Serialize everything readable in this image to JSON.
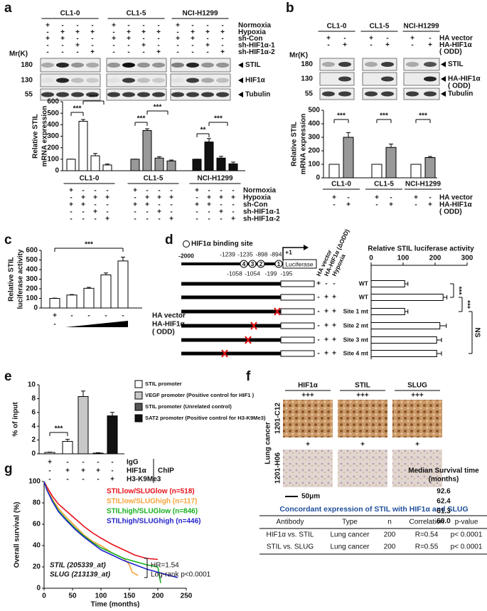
{
  "panel_labels": [
    "a",
    "b",
    "c",
    "d",
    "e",
    "f",
    "g"
  ],
  "a": {
    "cell_lines": [
      "CL1-0",
      "CL1-5",
      "NCI-H1299"
    ],
    "conditions": [
      {
        "label": [
          "Normoxia"
        ],
        "signs": [
          "+",
          "-",
          "-",
          "-",
          "+",
          "-",
          "-",
          "-",
          "+",
          "-",
          "-",
          "-"
        ]
      },
      {
        "label": [
          "Hypoxia"
        ],
        "signs": [
          "-",
          "+",
          "+",
          "+",
          "-",
          "+",
          "+",
          "+",
          "-",
          "+",
          "+",
          "+"
        ]
      },
      {
        "label": [
          "sh-Con"
        ],
        "signs": [
          "+",
          "+",
          "-",
          "-",
          "+",
          "+",
          "-",
          "-",
          "+",
          "+",
          "-",
          "-"
        ]
      },
      {
        "label": [
          "sh-HIF1α-1"
        ],
        "signs": [
          "-",
          "-",
          "+",
          "-",
          "-",
          "-",
          "+",
          "-",
          "-",
          "-",
          "+",
          "-"
        ]
      },
      {
        "label": [
          "sh-HIF1α-2"
        ],
        "signs": [
          "-",
          "-",
          "-",
          "+",
          "-",
          "-",
          "-",
          "+",
          "-",
          "-",
          "-",
          "+"
        ]
      }
    ],
    "mr_label": "Mr(K)",
    "blots": [
      {
        "mw": "180",
        "name": [
          "STIL"
        ]
      },
      {
        "mw": "130",
        "name": [
          "HIF1α"
        ]
      },
      {
        "mw": "55",
        "name": [
          "Tubulin"
        ]
      }
    ],
    "chart": {
      "type": "bar",
      "ylabel": [
        "Relative STIL",
        "mRNA expression"
      ],
      "ylim": [
        0,
        600
      ],
      "yticks": [
        0,
        100,
        200,
        300,
        400,
        500,
        600
      ],
      "values": [
        100,
        430,
        130,
        50,
        100,
        350,
        110,
        85,
        100,
        250,
        110,
        60
      ],
      "errors": [
        0,
        15,
        20,
        8,
        0,
        15,
        12,
        8,
        0,
        30,
        15,
        15
      ],
      "colors": [
        "#ffffff",
        "#ffffff",
        "#ffffff",
        "#ffffff",
        "#999999",
        "#999999",
        "#999999",
        "#999999",
        "#111111",
        "#111111",
        "#111111",
        "#111111"
      ],
      "significance": [
        "***",
        "***",
        "***",
        "***",
        "**",
        "***"
      ]
    }
  },
  "b": {
    "cell_lines": [
      "CL1-0",
      "CL1-5",
      "NCI-H1299"
    ],
    "conditions": [
      {
        "label": [
          "HA vector"
        ],
        "signs": [
          "+",
          "-",
          "+",
          "-",
          "+",
          "-"
        ]
      },
      {
        "label": [
          "HA-HIF1α",
          "(  ODD)"
        ],
        "signs": [
          "-",
          "+",
          "-",
          "+",
          "-",
          "+"
        ]
      }
    ],
    "mr_label": "Mr(K)",
    "blots": [
      {
        "mw": "180",
        "name": [
          "STIL"
        ]
      },
      {
        "mw": "130",
        "name": [
          "HA-HIF1α",
          "(  ODD)"
        ]
      },
      {
        "mw": "55",
        "name": [
          "Tubulin"
        ]
      }
    ],
    "chart": {
      "type": "bar",
      "ylabel": [
        "Relative STIL",
        "mRNA expression"
      ],
      "ylim": [
        0,
        500
      ],
      "yticks": [
        0,
        100,
        200,
        300,
        400,
        500
      ],
      "values": [
        100,
        300,
        100,
        225,
        100,
        150
      ],
      "errors": [
        0,
        35,
        0,
        25,
        0,
        8
      ],
      "colors": [
        "#ffffff",
        "#999999",
        "#ffffff",
        "#999999",
        "#ffffff",
        "#999999"
      ],
      "significance": [
        "***",
        "***",
        "***"
      ]
    }
  },
  "c": {
    "chart": {
      "type": "bar",
      "ylabel": [
        "Relative STIL",
        "luciferase activity"
      ],
      "ylim": [
        0,
        600
      ],
      "yticks": [
        0,
        100,
        200,
        300,
        400,
        500,
        600
      ],
      "values": [
        100,
        135,
        205,
        345,
        490
      ],
      "errors": [
        3,
        5,
        10,
        20,
        40
      ],
      "colors": [
        "#ffffff",
        "#ffffff",
        "#ffffff",
        "#ffffff",
        "#ffffff"
      ],
      "significance": [
        "***"
      ]
    },
    "conditions": [
      {
        "label": [
          "HA vector"
        ],
        "signs": [
          "+",
          "-",
          "-",
          "-",
          "-"
        ]
      }
    ],
    "wedge_sign": "-",
    "wedge_label": [
      "HA-HIF1α",
      "(  ODD)"
    ]
  },
  "d": {
    "legend": "HIF1α binding site",
    "start": "-2000",
    "sites_top": [
      "-1239",
      "-1235",
      "-898",
      "-894"
    ],
    "tss": "+1",
    "reporter": "Luciferase",
    "sites_bottom": [
      "-1058",
      "-1054",
      "-199",
      "-195"
    ],
    "site_numbers": [
      "4",
      "3",
      "2",
      "1"
    ],
    "columns": [
      "HA vector",
      "HA-HIF1α (ΔODD)",
      "Hypoxia"
    ],
    "constructs": [
      {
        "name": "WT",
        "signs": [
          "+",
          "-",
          "-"
        ]
      },
      {
        "name": "WT",
        "signs": [
          "-",
          "+",
          "+"
        ]
      },
      {
        "name": "Site 1 mt",
        "signs": [
          "-",
          "+",
          "+"
        ]
      },
      {
        "name": "Site 2 mt",
        "signs": [
          "-",
          "+",
          "+"
        ]
      },
      {
        "name": "Site 3 mt",
        "signs": [
          "-",
          "+",
          "+"
        ]
      },
      {
        "name": "Site 4 mt",
        "signs": [
          "-",
          "+",
          "+"
        ]
      }
    ],
    "chart": {
      "type": "bar",
      "orientation": "horizontal",
      "title": "Relative STIL luciferase activity",
      "xlim": [
        0,
        300
      ],
      "xticks": [
        0,
        100,
        200,
        300
      ],
      "values": [
        105,
        225,
        105,
        215,
        205,
        205
      ],
      "errors": [
        10,
        12,
        10,
        20,
        15,
        15
      ],
      "color": "#ffffff",
      "significance": [
        "***",
        "***",
        "NS"
      ]
    }
  },
  "e": {
    "chart": {
      "type": "bar",
      "ylabel": [
        "% of input"
      ],
      "ylim": [
        0,
        10
      ],
      "yticks": [
        0,
        2,
        4,
        6,
        8,
        10
      ],
      "values": [
        0.2,
        1.8,
        8.3,
        0.1,
        5.5
      ],
      "errors": [
        0.05,
        0.3,
        0.8,
        0.05,
        0.5
      ],
      "colors": [
        "#ffffff",
        "#ffffff",
        "#c8c8c8",
        "#555555",
        "#111111"
      ],
      "significance": [
        "***"
      ]
    },
    "legend": [
      {
        "label": "STIL promoter",
        "color": "#ffffff"
      },
      {
        "label": "VEGF promoter (Positive control for HIF1  )",
        "color": "#c8c8c8"
      },
      {
        "label": "STIL promoter (Unrelated control)",
        "color": "#555555"
      },
      {
        "label": "SAT2 promoter (Positive control for H3-K9Me3)",
        "color": "#111111"
      }
    ],
    "conditions": [
      {
        "label": [
          "IgG"
        ],
        "signs": [
          "+",
          "-",
          "-",
          "-",
          "-"
        ]
      },
      {
        "label": [
          "HIF1α"
        ],
        "signs": [
          "-",
          "+",
          "+",
          "+",
          "-"
        ]
      },
      {
        "label": [
          "H3-K9Me3"
        ],
        "signs": [
          "-",
          "-",
          "-",
          "-",
          "+"
        ]
      }
    ],
    "group_label": "ChIP"
  },
  "f": {
    "stains": [
      "HIF1α",
      "STIL",
      "SLUG"
    ],
    "scores": [
      [
        "+++",
        "+++",
        "+++"
      ],
      [
        "+",
        "+",
        "+"
      ]
    ],
    "samples": [
      "1201-C12",
      "1201-H06"
    ],
    "tissue": "Lung cancer",
    "scale": "50μm",
    "table": {
      "title": "Concordant expression of STIL with HIF1α and SLUG",
      "header": [
        "Antibody",
        "Type",
        "n",
        "Correlation",
        "p-value"
      ],
      "rows": [
        [
          "HIF1α vs. STIL",
          "Lung cancer",
          "200",
          "R=0.54",
          "p< 0.0001"
        ],
        [
          "STIL vs. SLUG",
          "Lung cancer",
          "200",
          "R=0.55",
          "p< 0.0001"
        ]
      ]
    }
  },
  "g": {
    "chart": {
      "type": "line",
      "ylabel": "Overall survival (%)",
      "xlabel": "Time (months)",
      "xlim": [
        0,
        250
      ],
      "xticks": [
        0,
        50,
        100,
        150,
        200,
        250
      ],
      "ylim": [
        0,
        100
      ],
      "yticks": [
        0,
        20,
        40,
        60,
        80,
        100
      ],
      "median_title": [
        "Median Survival time",
        "(months)"
      ],
      "series": [
        {
          "name": "STILlow/SLUGlow (n=518)",
          "color": "#e8101a",
          "median": "92.6",
          "x": [
            0,
            5,
            15,
            25,
            40,
            55,
            70,
            85,
            100,
            120,
            140,
            160,
            180,
            200
          ],
          "values": [
            100,
            95,
            86,
            79,
            72,
            65,
            58,
            52,
            47,
            41,
            36,
            31,
            28,
            27
          ]
        },
        {
          "name": "STILlow/SLUGhigh (n=117)",
          "color": "#f4a33a",
          "median": "62.4",
          "x": [
            0,
            5,
            15,
            25,
            40,
            55,
            70,
            85,
            100,
            120,
            140,
            150,
            155,
            165
          ],
          "values": [
            100,
            93,
            83,
            75,
            66,
            58,
            50,
            44,
            40,
            33,
            28,
            22,
            15,
            12
          ]
        },
        {
          "name": "STILhigh/SLUGlow (n=846)",
          "color": "#16b01e",
          "median": "61.3",
          "x": [
            0,
            5,
            15,
            25,
            40,
            55,
            70,
            85,
            100,
            120,
            140,
            160,
            180,
            200,
            205
          ],
          "values": [
            100,
            92,
            82,
            73,
            64,
            56,
            49,
            43,
            38,
            33,
            28,
            25,
            22,
            20,
            5
          ]
        },
        {
          "name": "STILhigh/SLUGhigh (n=446)",
          "color": "#2222cc",
          "median": "60.0",
          "x": [
            0,
            5,
            15,
            25,
            40,
            55,
            70,
            85,
            100,
            120,
            140,
            160,
            180,
            200,
            220,
            235
          ],
          "values": [
            100,
            92,
            81,
            72,
            63,
            55,
            48,
            42,
            36,
            31,
            26,
            22,
            18,
            15,
            12,
            10
          ]
        }
      ],
      "annotations": [
        "STIL (205339_at)",
        "SLUG (213139_at)"
      ],
      "stats": [
        "HR=1.54",
        "Log-rank p<0.0001"
      ]
    }
  }
}
